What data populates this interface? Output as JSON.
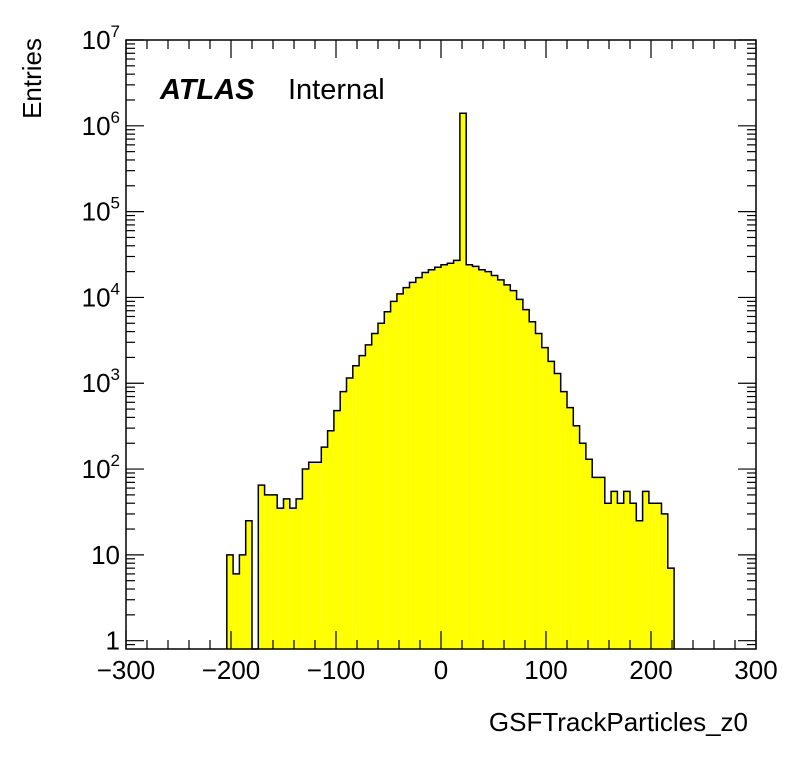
{
  "chart_data": {
    "type": "bar",
    "title": "",
    "xlabel": "GSFTrackParticles_z0",
    "ylabel": "Entries",
    "xlim": [
      -300,
      300
    ],
    "ylim": [
      0.8,
      10000000
    ],
    "log_y": true,
    "grid": false,
    "fill_color": "#ffff00",
    "line_color": "#000000",
    "label_main": "ATLAS",
    "label_sub": "Internal",
    "x_ticks": [
      {
        "value": -300,
        "label": "−300"
      },
      {
        "value": -200,
        "label": "−200"
      },
      {
        "value": -100,
        "label": "−100"
      },
      {
        "value": 0,
        "label": "0"
      },
      {
        "value": 100,
        "label": "100"
      },
      {
        "value": 200,
        "label": "200"
      },
      {
        "value": 300,
        "label": "300"
      }
    ],
    "y_ticks": [
      {
        "value": 1,
        "base": "1",
        "exp": ""
      },
      {
        "value": 10,
        "base": "10",
        "exp": ""
      },
      {
        "value": 100,
        "base": "10",
        "exp": "2"
      },
      {
        "value": 1000,
        "base": "10",
        "exp": "3"
      },
      {
        "value": 10000,
        "base": "10",
        "exp": "4"
      },
      {
        "value": 100000,
        "base": "10",
        "exp": "5"
      },
      {
        "value": 1000000,
        "base": "10",
        "exp": "6"
      },
      {
        "value": 10000000,
        "base": "10",
        "exp": "7"
      }
    ],
    "bin_edges_start": -204,
    "bin_width": 6,
    "values": [
      10,
      6,
      10,
      25,
      0,
      65,
      50,
      50,
      35,
      45,
      35,
      45,
      100,
      120,
      120,
      180,
      280,
      480,
      800,
      1150,
      1600,
      2100,
      2800,
      3800,
      5000,
      6800,
      9000,
      11000,
      13000,
      15000,
      17000,
      19500,
      21000,
      22500,
      24000,
      25000,
      27000,
      1400000,
      24000,
      23000,
      21000,
      20000,
      18000,
      16000,
      14000,
      12000,
      9500,
      7200,
      5200,
      3800,
      2600,
      1800,
      1300,
      800,
      520,
      320,
      200,
      130,
      80,
      80,
      40,
      55,
      40,
      55,
      40,
      25,
      55,
      40,
      40,
      30,
      7
    ]
  }
}
